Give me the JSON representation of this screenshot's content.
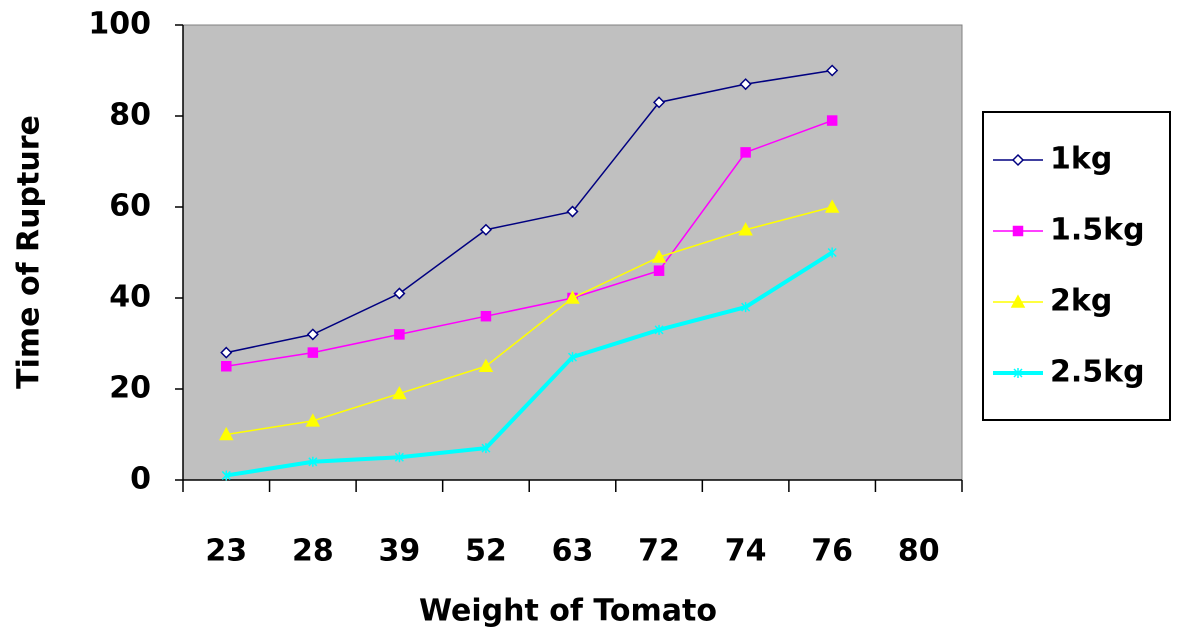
{
  "chart_data": {
    "type": "line",
    "x_label": "Weight of Tomato",
    "y_label": "Time of Rupture",
    "categories": [
      "23",
      "28",
      "39",
      "52",
      "63",
      "72",
      "74",
      "76",
      "80"
    ],
    "ylim": [
      0,
      100
    ],
    "yticks": [
      0,
      20,
      40,
      60,
      80,
      100
    ],
    "plot_background": "#c0c0c0",
    "legend": "right",
    "series": [
      {
        "name": "1kg",
        "color": "#000080",
        "marker": "diamond",
        "line_width": 1.5,
        "values": [
          28,
          32,
          41,
          55,
          59,
          83,
          87,
          90,
          null
        ]
      },
      {
        "name": "1.5kg",
        "color": "#ff00ff",
        "marker": "square",
        "line_width": 1.5,
        "values": [
          25,
          28,
          32,
          36,
          40,
          46,
          72,
          79,
          null
        ]
      },
      {
        "name": "2kg",
        "color": "#ffff00",
        "marker": "triangle",
        "line_width": 1.5,
        "values": [
          10,
          13,
          19,
          25,
          40,
          49,
          55,
          60,
          null
        ]
      },
      {
        "name": "2.5kg",
        "color": "#00ffff",
        "marker": "star",
        "line_width": 4,
        "values": [
          1,
          4,
          5,
          7,
          27,
          33,
          38,
          50,
          null
        ]
      }
    ]
  }
}
